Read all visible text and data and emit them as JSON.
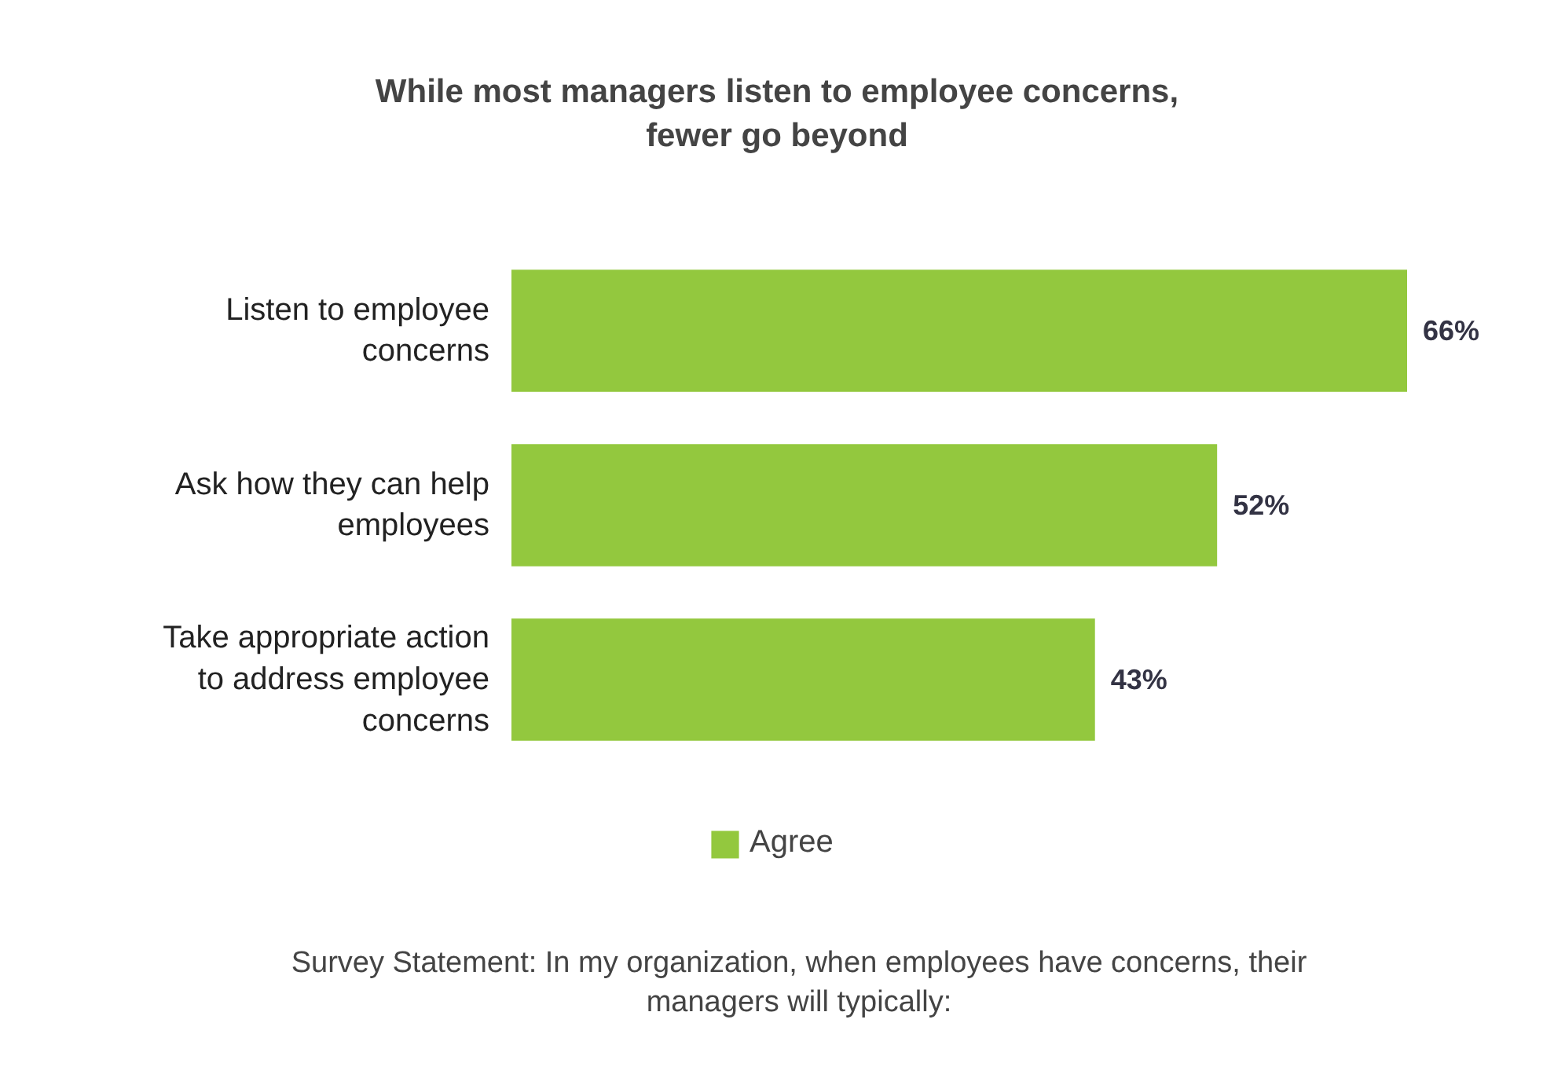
{
  "chart_data": {
    "type": "bar",
    "orientation": "horizontal",
    "title": "While most managers listen to employee concerns, fewer go beyond",
    "categories": [
      "Listen to employee concerns",
      "Ask how they can help employees",
      "Take appropriate action to address employee concerns"
    ],
    "series": [
      {
        "name": "Agree",
        "color": "#93c83e",
        "values": [
          66,
          52,
          43
        ],
        "value_labels": [
          "66%",
          "52%",
          "43%"
        ]
      }
    ],
    "legend": "bottom",
    "grid": false,
    "tick_labels": "y",
    "annotations": [
      "Survey Statement: In my organization, when employees have concerns, their managers will typically:"
    ]
  }
}
